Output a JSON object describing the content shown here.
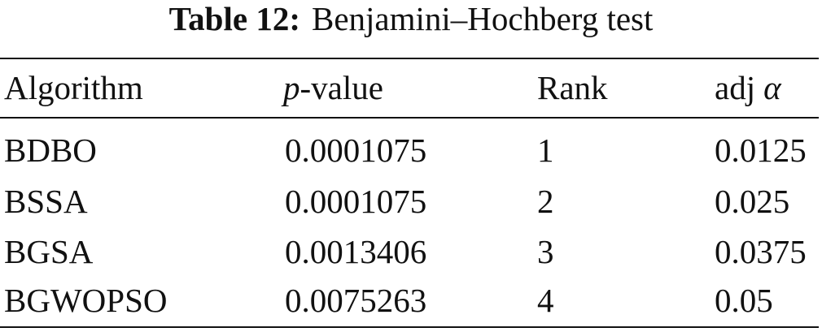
{
  "caption": {
    "label": "Table 12:",
    "text": "Benjamini–Hochberg test"
  },
  "table": {
    "header": {
      "algorithm": "Algorithm",
      "p_value": {
        "symbol": "p",
        "rest": "-value"
      },
      "rank": "Rank",
      "adj_alpha": {
        "text": "adj",
        "symbol": "α"
      }
    },
    "rows": [
      [
        "BDBO",
        "0.0001075",
        "1",
        "0.0125"
      ],
      [
        "BSSA",
        "0.0001075",
        "2",
        "0.025"
      ],
      [
        "BGSA",
        "0.0013406",
        "3",
        "0.0375"
      ],
      [
        "BGWOPSO",
        "0.0075263",
        "4",
        "0.05"
      ]
    ]
  }
}
